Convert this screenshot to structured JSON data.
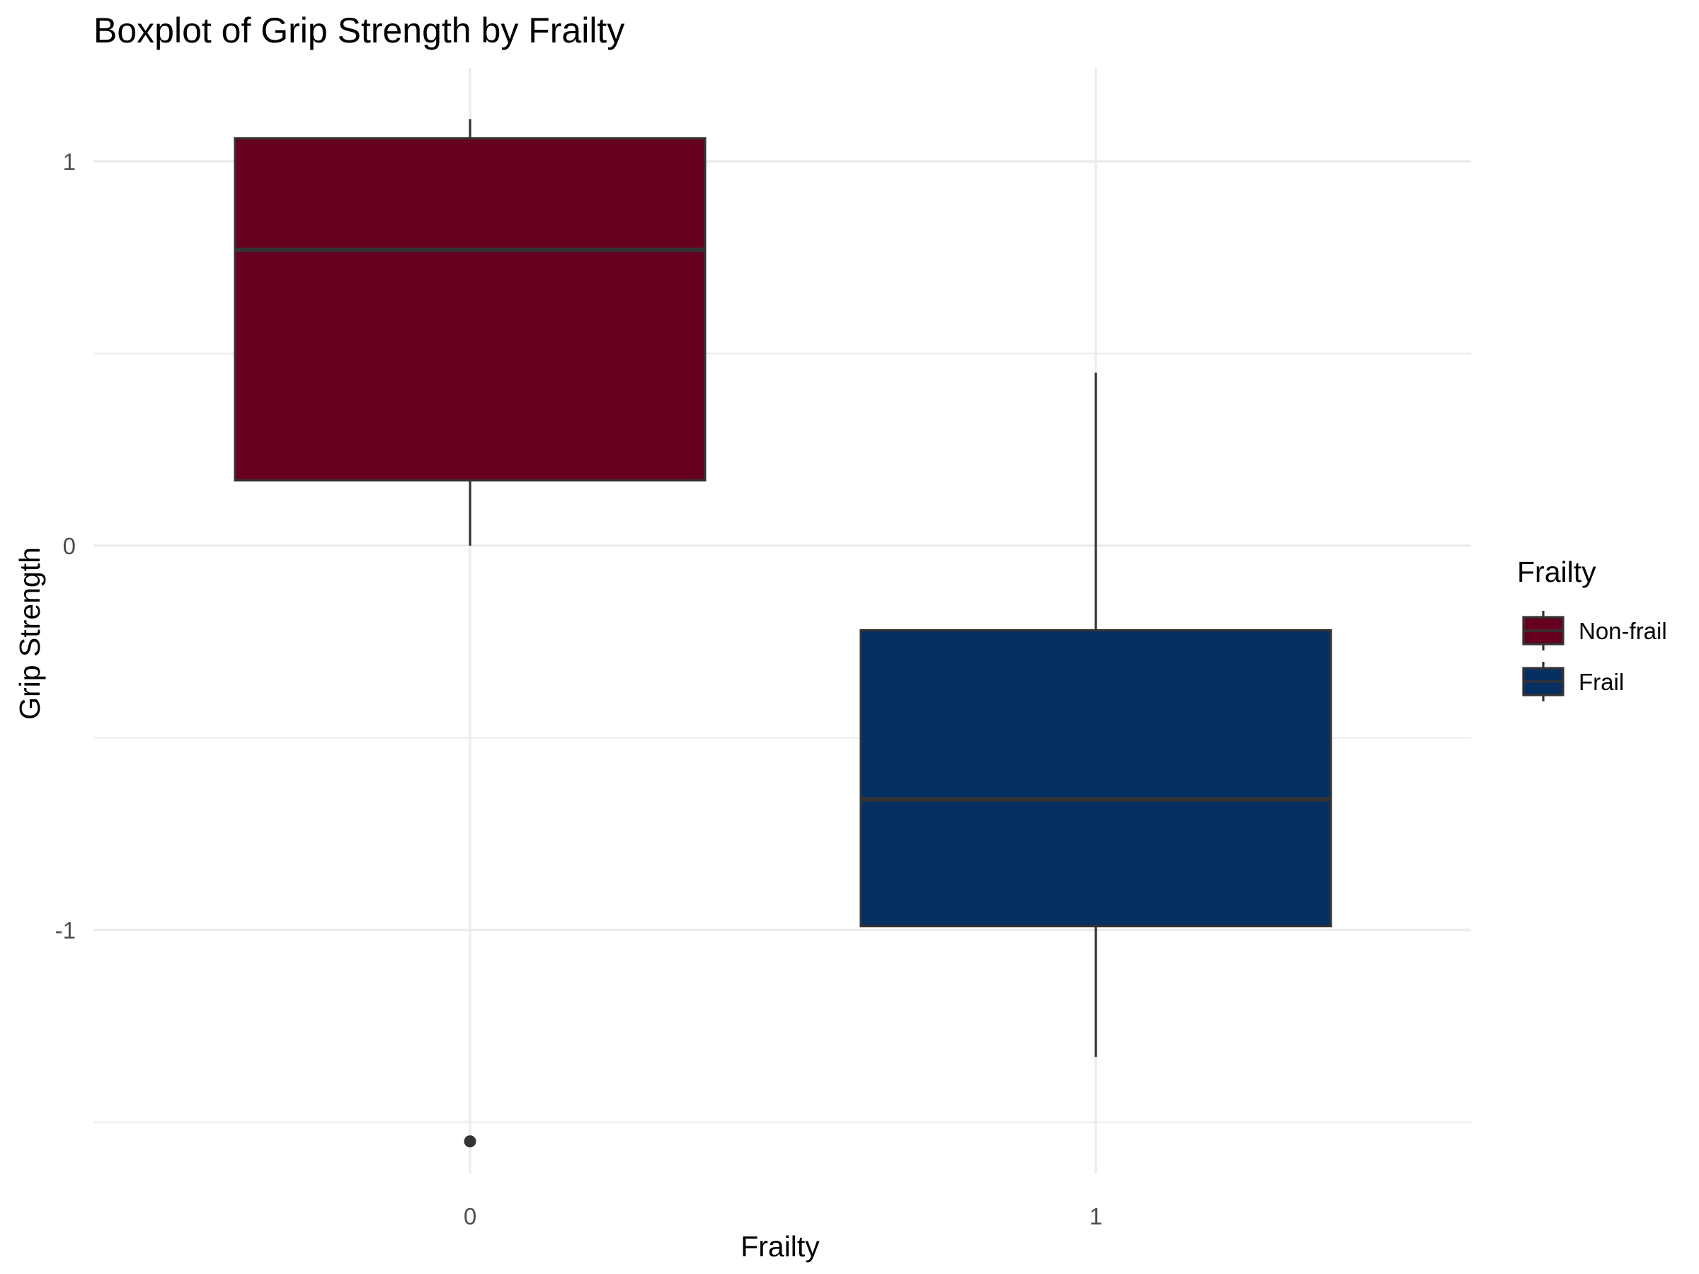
{
  "chart_data": {
    "type": "boxplot",
    "title": "Boxplot of Grip Strength by Frailty",
    "xlabel": "Frailty",
    "ylabel": "Grip Strength",
    "categories": [
      "0",
      "1"
    ],
    "ylim": [
      -1.62,
      1.24
    ],
    "y_ticks": [
      1,
      0,
      -1
    ],
    "y_tick_labels": [
      "1",
      "0",
      "-1"
    ],
    "y_minor_gridlines": [
      0.5,
      -0.5,
      -1.5
    ],
    "grid": true,
    "boxes": [
      {
        "category": "0",
        "name": "Non-frail",
        "color": "#67001f",
        "whisker_low": 0.0,
        "q1": 0.17,
        "median": 0.77,
        "q3": 1.06,
        "whisker_high": 1.11,
        "outliers": [
          -1.55
        ]
      },
      {
        "category": "1",
        "name": "Frail",
        "color": "#053061",
        "whisker_low": -1.33,
        "q1": -0.99,
        "median": -0.66,
        "q3": -0.22,
        "whisker_high": 0.45,
        "outliers": []
      }
    ],
    "legend": {
      "title": "Frailty",
      "position": "right",
      "entries": [
        {
          "label": "Non-frail",
          "color": "#67001f"
        },
        {
          "label": "Frail",
          "color": "#053061"
        }
      ]
    }
  }
}
